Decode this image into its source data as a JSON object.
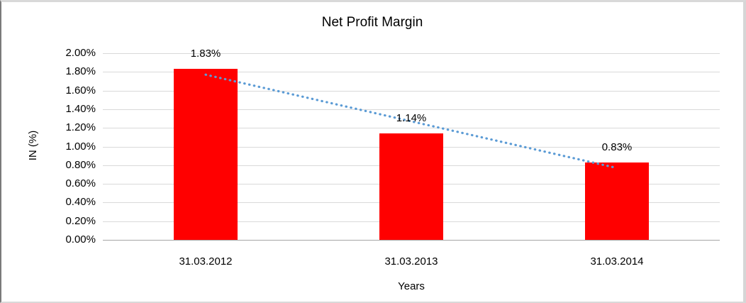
{
  "chart_data": {
    "type": "bar",
    "title": "Net Profit Margin",
    "xlabel": "Years",
    "ylabel": "IN (%)",
    "categories": [
      "31.03.2012",
      "31.03.2013",
      "31.03.2014"
    ],
    "values": [
      1.83,
      1.14,
      0.83
    ],
    "data_labels": [
      "1.83%",
      "1.14%",
      "0.83%"
    ],
    "ylim": [
      0,
      2
    ],
    "ytick_step": 0.2,
    "ytick_labels": [
      "0.00%",
      "0.20%",
      "0.40%",
      "0.60%",
      "0.80%",
      "1.00%",
      "1.20%",
      "1.40%",
      "1.60%",
      "1.80%",
      "2.00%"
    ],
    "grid": true,
    "legend": "none",
    "bar_color": "#FF0000",
    "gridline_color": "#D9D9D9",
    "axis_line_color": "#A6A6A6",
    "text_color": "#000000",
    "trendline": {
      "type": "linear",
      "style": "round-dot",
      "color": "#5B9BD5",
      "start": {
        "category_index": 0,
        "value": 1.77
      },
      "end": {
        "category_index": 2,
        "value": 0.77
      }
    }
  }
}
